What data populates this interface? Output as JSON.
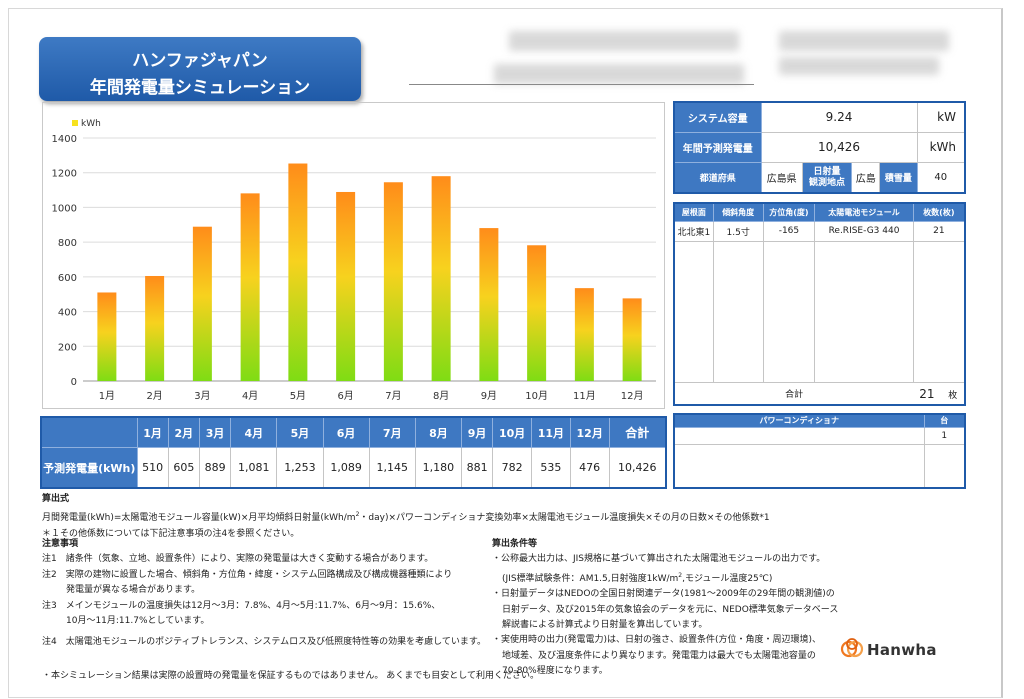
{
  "banner": {
    "brand": "ハンファジャパン",
    "title": "年間発電量シミュレーション"
  },
  "chart_data": {
    "type": "bar",
    "legend": "kWh",
    "categories": [
      "1月",
      "2月",
      "3月",
      "4月",
      "5月",
      "6月",
      "7月",
      "8月",
      "9月",
      "10月",
      "11月",
      "12月"
    ],
    "values": [
      510,
      605,
      889,
      1081,
      1253,
      1089,
      1145,
      1180,
      881,
      782,
      535,
      476
    ],
    "ylim": [
      0,
      1400
    ],
    "yticks": [
      0,
      200,
      400,
      600,
      800,
      1000,
      1200,
      1400
    ],
    "colors": {
      "top": "#ff8c1a",
      "bottom": "#7fdc14"
    }
  },
  "monthly_table": {
    "headers": [
      "1月",
      "2月",
      "3月",
      "4月",
      "5月",
      "6月",
      "7月",
      "8月",
      "9月",
      "10月",
      "11月",
      "12月",
      "合計"
    ],
    "row_label": "予測発電量(kWh)",
    "values": [
      "510",
      "605",
      "889",
      "1,081",
      "1,253",
      "1,089",
      "1,145",
      "1,180",
      "881",
      "782",
      "535",
      "476",
      "10,426"
    ]
  },
  "system": {
    "capacity_label": "システム容量",
    "capacity_value": "9.24",
    "capacity_unit": "kW",
    "annual_label": "年間予測発電量",
    "annual_value": "10,426",
    "annual_unit": "kWh",
    "pref_label": "都道府県",
    "pref_value": "広島県",
    "point_label": "日射量\n観測地点",
    "point_value": "広島",
    "snow_label": "積雪量",
    "snow_value": "40"
  },
  "modules": {
    "headers": [
      "屋根面",
      "傾斜角度",
      "方位角(度)",
      "太陽電池モジュール",
      "枚数(枚)"
    ],
    "rows": [
      [
        "北北東1",
        "1.5寸",
        "-165",
        "Re.RISE-G3 440",
        "21"
      ]
    ],
    "total_label": "合計",
    "total_value": "21",
    "total_unit": "枚"
  },
  "power_conditioner": {
    "header_name": "パワーコンディショナ",
    "header_unit": "台",
    "count": "1"
  },
  "formula": {
    "title": "算出式",
    "line1a": "月間発電量(kWh)=太陽電池モジュール容量(kW)×月平均傾斜日射量(kWh/m",
    "line1sup": "2",
    "line1b": "・day)×パワーコンディショナ変換効率×太陽電池モジュール温度損失×その月の日数×その他係数*1",
    "line2": "＊１その他係数については下記注意事項の注4を参照ください。"
  },
  "notes": {
    "title": "注意事項",
    "n1": "注1　諸条件（気象、立地、設置条件）により、実際の発電量は大きく変動する場合があります。",
    "n2a": "注2　実際の建物に設置した場合、傾斜角・方位角・緯度・システム回路構成及び構成機器種類により",
    "n2b": "発電量が異なる場合があります。",
    "n3a": "注3　メインモジュールの温度損失は12月～3月：7.8%、4月～5月:11.7%、6月～9月：15.6%、",
    "n3b": "10月～11月:11.7%としています。",
    "n4": "注4　太陽電池モジュールのポジティブトレランス、システムロス及び低照度特性等の効果を考慮しています。",
    "footer": "・本シミュレーション結果は実際の設置時の発電量を保証するものではありません。 あくまでも目安として利用ください。"
  },
  "conditions": {
    "title": "算出条件等",
    "c1a": "・公称最大出力は、JIS規格に基づいて算出された太陽電池モジュールの出力です。",
    "c1b_pre": "(JIS標準試験条件：AM1.5,日射強度1kW/m",
    "c1b_sup": "2",
    "c1b_post": ",モジュール温度25℃)",
    "c2a": "・日射量データはNEDOの全国日射関連データ(1981～2009年の29年間の観測値)の",
    "c2b": "日射データ、及び2015年の気象協会のデータを元に、NEDO標準気象データベース",
    "c2c": "解説書による計算式より日射量を算出しています。",
    "c3a": "・実使用時の出力(発電電力)は、日射の強さ、設置条件(方位・角度・周辺環境)、",
    "c3b": "地域差、及び温度条件により異なります。発電電力は最大でも太陽電池容量の",
    "c3c": "70-80%程度になります。"
  },
  "logo": {
    "name": "Hanwha"
  }
}
